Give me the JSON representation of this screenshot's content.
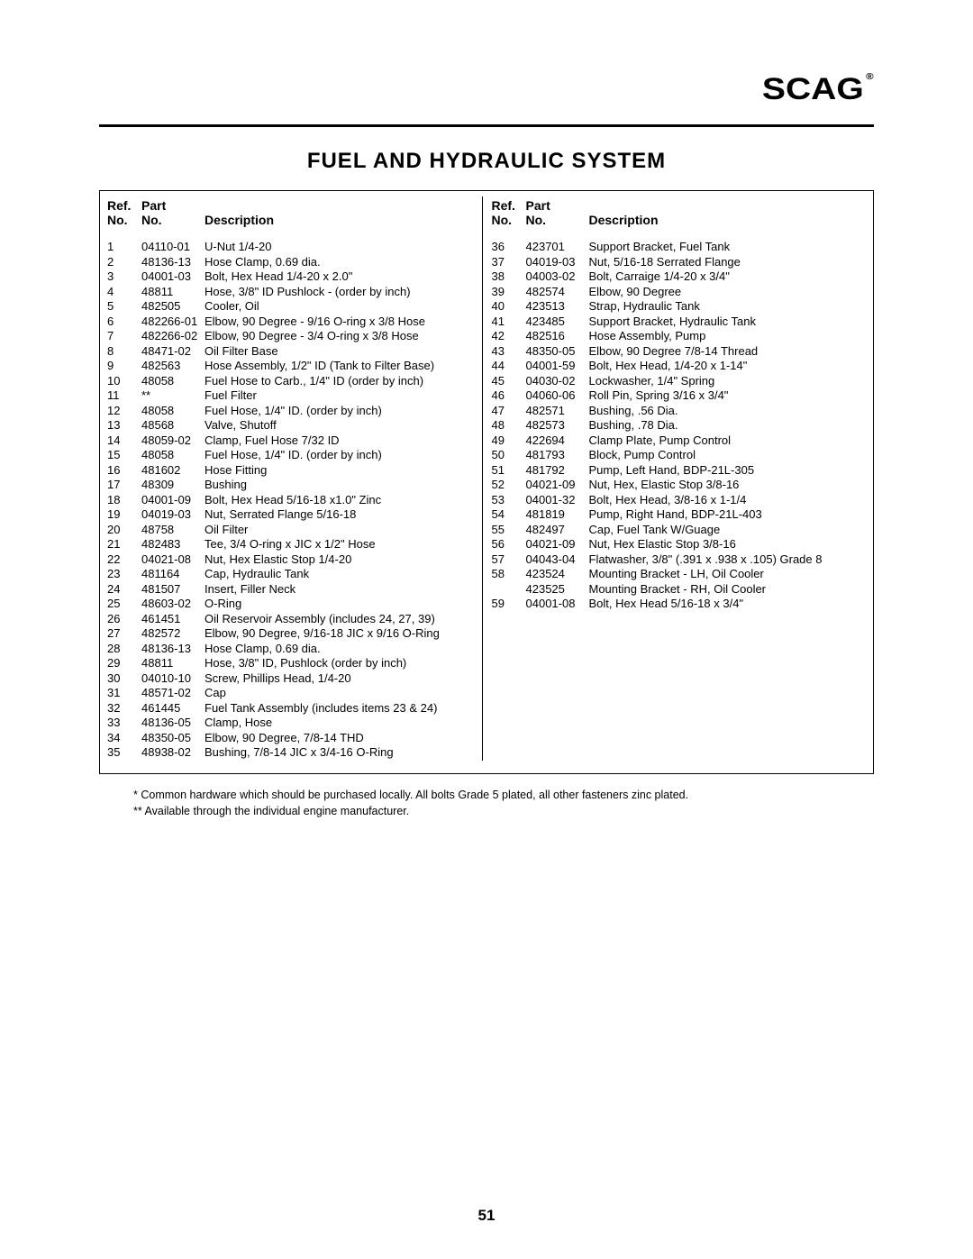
{
  "logo": "SCAG",
  "title": "FUEL AND HYDRAULIC SYSTEM",
  "header": {
    "ref": "Ref.\nNo.",
    "part": "Part\nNo.",
    "desc": "Description"
  },
  "left": [
    {
      "r": "1",
      "p": "04110-01",
      "d": "U-Nut 1/4-20"
    },
    {
      "r": "2",
      "p": "48136-13",
      "d": "Hose Clamp, 0.69 dia."
    },
    {
      "r": "3",
      "p": "04001-03",
      "d": "Bolt, Hex Head 1/4-20 x 2.0\""
    },
    {
      "r": "4",
      "p": "48811",
      "d": "Hose, 3/8\" ID Pushlock - (order by inch)"
    },
    {
      "r": "5",
      "p": "482505",
      "d": "Cooler, Oil"
    },
    {
      "r": "6",
      "p": "482266-01",
      "d": "Elbow, 90 Degree - 9/16 O-ring x 3/8 Hose"
    },
    {
      "r": "7",
      "p": "482266-02",
      "d": "Elbow, 90 Degree - 3/4 O-ring x 3/8 Hose"
    },
    {
      "r": "8",
      "p": "48471-02",
      "d": "Oil Filter Base"
    },
    {
      "r": "9",
      "p": "482563",
      "d": "Hose Assembly, 1/2\" ID (Tank to Filter Base)"
    },
    {
      "r": "10",
      "p": "48058",
      "d": "Fuel Hose to Carb., 1/4\" ID (order by inch)"
    },
    {
      "r": "11",
      "p": "**",
      "d": "Fuel Filter"
    },
    {
      "r": "12",
      "p": "48058",
      "d": "Fuel Hose, 1/4\" ID.  (order by inch)"
    },
    {
      "r": "13",
      "p": "48568",
      "d": "Valve, Shutoff"
    },
    {
      "r": "14",
      "p": "48059-02",
      "d": "Clamp, Fuel Hose 7/32 ID"
    },
    {
      "r": "15",
      "p": "48058",
      "d": "Fuel Hose, 1/4\" ID. (order by inch)"
    },
    {
      "r": "16",
      "p": "481602",
      "d": "Hose Fitting"
    },
    {
      "r": "17",
      "p": "48309",
      "d": "Bushing"
    },
    {
      "r": "18",
      "p": "04001-09",
      "d": "Bolt, Hex Head 5/16-18 x1.0\" Zinc"
    },
    {
      "r": "19",
      "p": "04019-03",
      "d": "Nut, Serrated Flange 5/16-18"
    },
    {
      "r": "20",
      "p": "48758",
      "d": "Oil Filter"
    },
    {
      "r": "21",
      "p": "482483",
      "d": "Tee, 3/4 O-ring x JIC x 1/2\" Hose"
    },
    {
      "r": "22",
      "p": "04021-08",
      "d": "Nut, Hex Elastic Stop 1/4-20"
    },
    {
      "r": "23",
      "p": "481164",
      "d": "Cap, Hydraulic Tank"
    },
    {
      "r": "24",
      "p": "481507",
      "d": "Insert, Filler Neck"
    },
    {
      "r": "25",
      "p": "48603-02",
      "d": "O-Ring"
    },
    {
      "r": "26",
      "p": "461451",
      "d": "Oil Reservoir Assembly (includes 24, 27, 39)"
    },
    {
      "r": "27",
      "p": "482572",
      "d": "Elbow, 90 Degree, 9/16-18 JIC x 9/16 O-Ring"
    },
    {
      "r": "28",
      "p": "48136-13",
      "d": "Hose Clamp, 0.69 dia."
    },
    {
      "r": "29",
      "p": "48811",
      "d": "Hose, 3/8\" ID, Pushlock (order by inch)"
    },
    {
      "r": "30",
      "p": "04010-10",
      "d": "Screw, Phillips Head, 1/4-20"
    },
    {
      "r": "31",
      "p": "48571-02",
      "d": "Cap"
    },
    {
      "r": "32",
      "p": "461445",
      "d": "Fuel Tank Assembly (includes items 23 & 24)"
    },
    {
      "r": "33",
      "p": "48136-05",
      "d": "Clamp, Hose"
    },
    {
      "r": "34",
      "p": "48350-05",
      "d": "Elbow, 90 Degree, 7/8-14 THD"
    },
    {
      "r": "35",
      "p": "48938-02",
      "d": "Bushing, 7/8-14 JIC x 3/4-16 O-Ring"
    }
  ],
  "right": [
    {
      "r": "36",
      "p": "423701",
      "d": "Support Bracket, Fuel Tank"
    },
    {
      "r": "37",
      "p": "04019-03",
      "d": "Nut, 5/16-18 Serrated Flange"
    },
    {
      "r": "38",
      "p": "04003-02",
      "d": "Bolt, Carraige 1/4-20 x 3/4\""
    },
    {
      "r": "39",
      "p": "482574",
      "d": "Elbow, 90 Degree"
    },
    {
      "r": "40",
      "p": "423513",
      "d": "Strap, Hydraulic Tank"
    },
    {
      "r": "41",
      "p": "423485",
      "d": "Support Bracket, Hydraulic Tank"
    },
    {
      "r": "42",
      "p": "482516",
      "d": "Hose Assembly, Pump"
    },
    {
      "r": "43",
      "p": "48350-05",
      "d": "Elbow, 90 Degree 7/8-14 Thread"
    },
    {
      "r": "44",
      "p": "04001-59",
      "d": "Bolt, Hex Head, 1/4-20 x 1-14\""
    },
    {
      "r": "45",
      "p": "04030-02",
      "d": "Lockwasher, 1/4\" Spring"
    },
    {
      "r": "46",
      "p": "04060-06",
      "d": "Roll Pin, Spring 3/16 x 3/4\""
    },
    {
      "r": "47",
      "p": "482571",
      "d": "Bushing, .56 Dia."
    },
    {
      "r": "48",
      "p": "482573",
      "d": "Bushing, .78 Dia."
    },
    {
      "r": "49",
      "p": "422694",
      "d": "Clamp Plate, Pump Control"
    },
    {
      "r": "50",
      "p": "481793",
      "d": "Block, Pump Control"
    },
    {
      "r": "51",
      "p": "481792",
      "d": "Pump, Left Hand, BDP-21L-305"
    },
    {
      "r": "52",
      "p": "04021-09",
      "d": "Nut, Hex, Elastic Stop 3/8-16"
    },
    {
      "r": "53",
      "p": "04001-32",
      "d": "Bolt, Hex Head, 3/8-16 x 1-1/4"
    },
    {
      "r": "54",
      "p": "481819",
      "d": "Pump, Right Hand, BDP-21L-403"
    },
    {
      "r": "55",
      "p": "482497",
      "d": "Cap, Fuel Tank W/Guage"
    },
    {
      "r": "56",
      "p": "04021-09",
      "d": "Nut, Hex Elastic Stop 3/8-16"
    },
    {
      "r": "57",
      "p": "04043-04",
      "d": "Flatwasher, 3/8\" (.391 x .938 x .105) Grade 8"
    },
    {
      "r": "58",
      "p": "423524",
      "d": "Mounting Bracket - LH, Oil Cooler"
    },
    {
      "r": "",
      "p": "423525",
      "d": "Mounting Bracket - RH, Oil Cooler"
    },
    {
      "r": "59",
      "p": "04001-08",
      "d": "Bolt, Hex Head 5/16-18 x 3/4\""
    }
  ],
  "footnotes": [
    "* Common hardware which should be purchased locally.  All bolts Grade 5 plated, all other fasteners zinc plated.",
    "** Available through the individual engine manufacturer."
  ],
  "page_number": "51"
}
